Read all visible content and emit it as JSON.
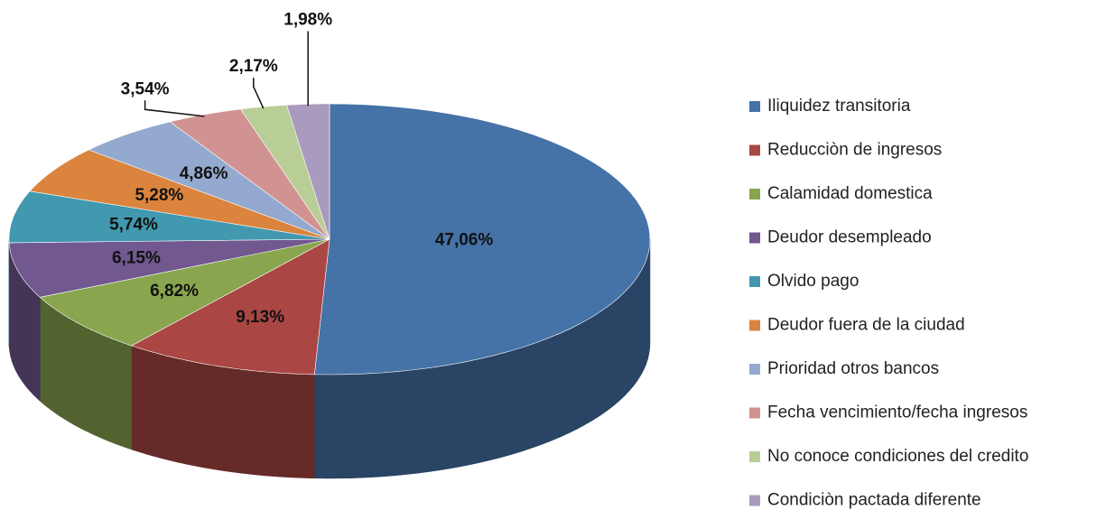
{
  "chart_data": {
    "type": "pie",
    "three_d": true,
    "categories": [
      "Iliquidez transitoria",
      "Reducciòn de ingresos",
      "Calamidad domestica",
      "Deudor desempleado",
      "Olvido pago",
      "Deudor fuera de la ciudad",
      "Prioridad otros bancos",
      "Fecha vencimiento/fecha ingresos",
      "No conoce condiciones del credito",
      "Condiciòn pactada diferente"
    ],
    "values": [
      47.06,
      9.13,
      6.82,
      6.15,
      5.74,
      5.28,
      4.86,
      3.54,
      2.17,
      1.98
    ],
    "value_labels": [
      "47,06%",
      "9,13%",
      "6,82%",
      "6,15%",
      "5,74%",
      "5,28%",
      "4,86%",
      "3,54%",
      "2,17%",
      "1,98%"
    ],
    "colors": [
      "#4572a7",
      "#aa4643",
      "#89a54e",
      "#71588f",
      "#4198af",
      "#db843d",
      "#93a9cf",
      "#d19392",
      "#b9cd96",
      "#a99bbd"
    ],
    "legend": "right"
  }
}
